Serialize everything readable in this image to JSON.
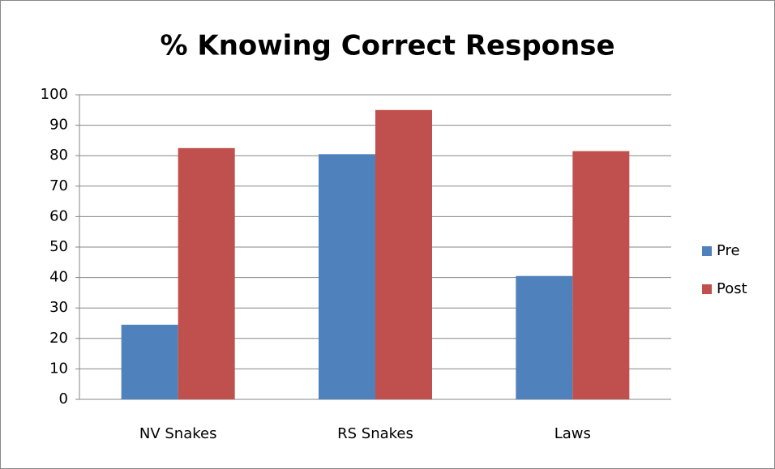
{
  "chart_data": {
    "type": "bar",
    "title": "% Knowing Correct Response",
    "categories": [
      "NV Snakes",
      "RS Snakes",
      "Laws"
    ],
    "series": [
      {
        "name": "Pre",
        "color": "#4f81bd",
        "values": [
          24.5,
          80.5,
          40.5
        ]
      },
      {
        "name": "Post",
        "color": "#c0504d",
        "values": [
          82.5,
          95,
          81.5
        ]
      }
    ],
    "ylim": [
      0,
      100
    ],
    "yticks": [
      0,
      10,
      20,
      30,
      40,
      50,
      60,
      70,
      80,
      90,
      100
    ],
    "grid": true,
    "legend": "right"
  }
}
